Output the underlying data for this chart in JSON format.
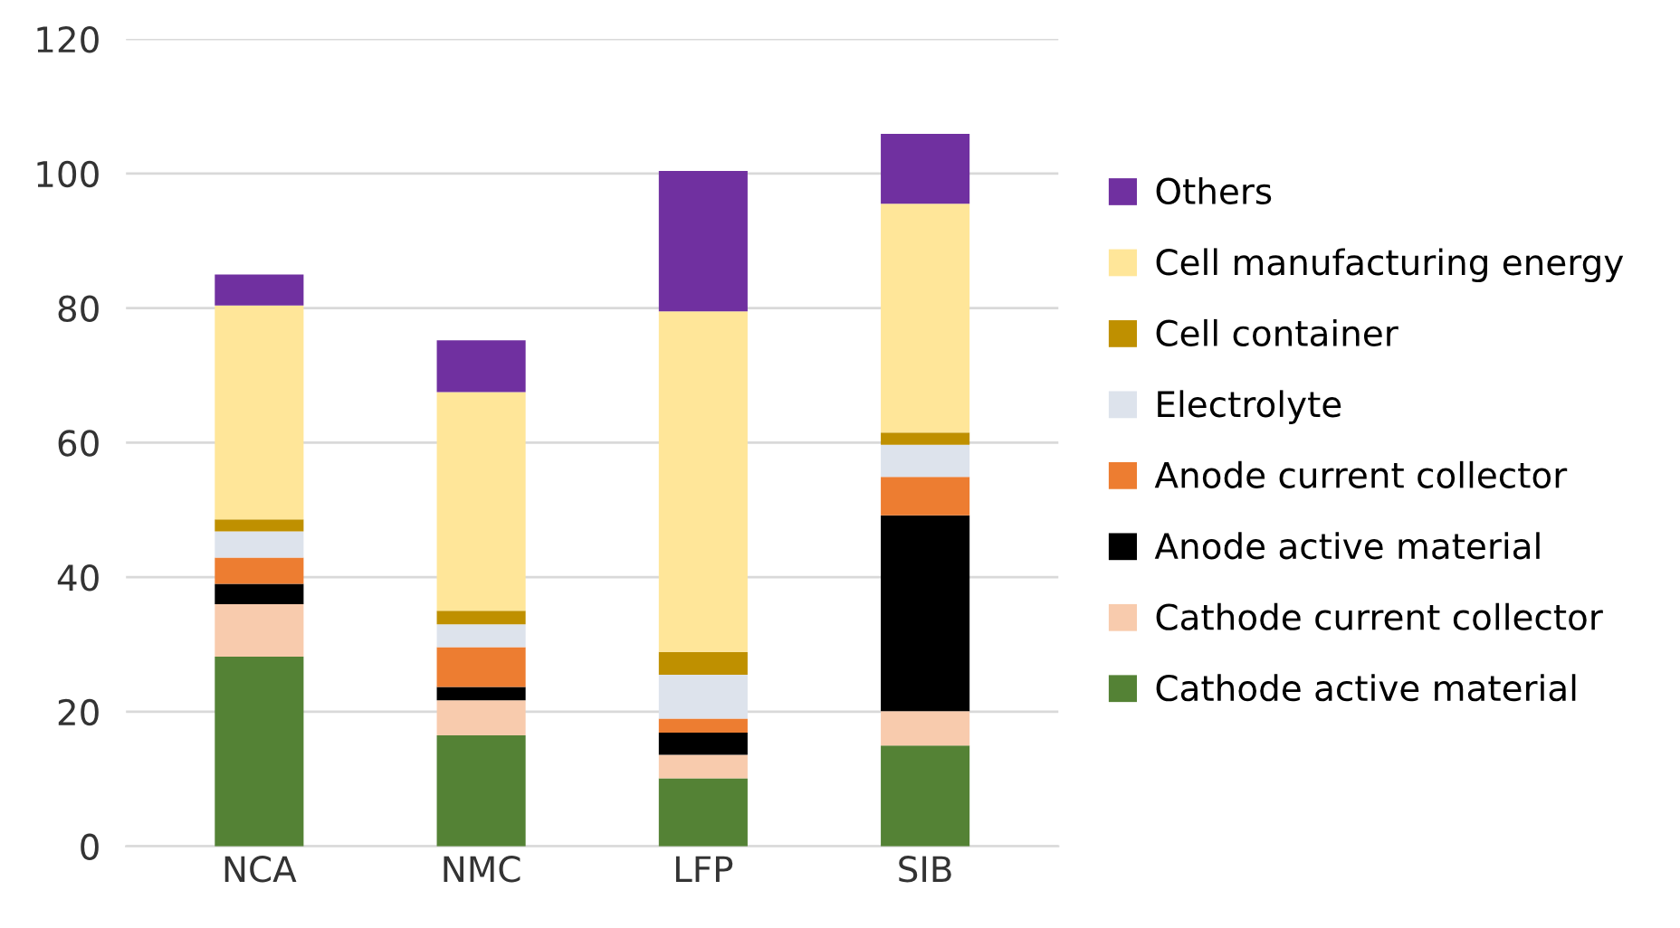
{
  "chart_data": {
    "type": "bar",
    "stacked": true,
    "categories": [
      "NCA",
      "NMC",
      "LFP",
      "SIB"
    ],
    "series": [
      {
        "name": "Cathode active material",
        "color": "#548235",
        "values": [
          28.2,
          16.5,
          10.1,
          15.0
        ]
      },
      {
        "name": "Cathode current collector",
        "color": "#f8cbad",
        "values": [
          7.8,
          5.2,
          3.5,
          5.1
        ]
      },
      {
        "name": "Anode active material",
        "color": "#000000",
        "values": [
          3.0,
          2.0,
          3.3,
          29.1
        ]
      },
      {
        "name": "Anode current collector",
        "color": "#ed7d31",
        "values": [
          3.9,
          5.9,
          2.1,
          5.7
        ]
      },
      {
        "name": "Electrolyte",
        "color": "#dde3ec",
        "values": [
          3.9,
          3.4,
          6.5,
          4.8
        ]
      },
      {
        "name": "Cell container",
        "color": "#bf9000",
        "values": [
          1.8,
          2.0,
          3.4,
          1.8
        ]
      },
      {
        "name": "Cell manufacturing energy",
        "color": "#ffe699",
        "values": [
          31.8,
          32.5,
          50.6,
          34.0
        ]
      },
      {
        "name": "Others",
        "color": "#7030a0",
        "values": [
          4.6,
          7.7,
          20.9,
          10.4
        ]
      }
    ],
    "ylim": [
      0,
      120
    ],
    "yticks": [
      0,
      20,
      40,
      60,
      80,
      100,
      120
    ],
    "grid": "y",
    "legend": "right"
  }
}
